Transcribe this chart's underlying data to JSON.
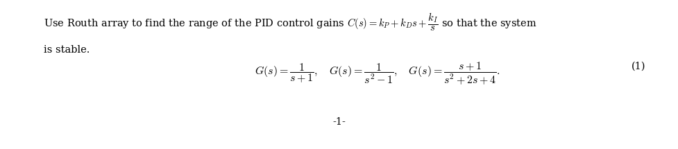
{
  "background_color": "#ffffff",
  "text_color": "#000000",
  "line1": "Use Routh array to find the range of the PID control gains $C(s) = k_P+k_Ds+\\dfrac{k_I}{s}$ so that the system",
  "line2": "is stable.",
  "equation": "$G(s) = \\dfrac{1}{s+1},\\quad G(s) = \\dfrac{1}{s^2-1},\\quad G(s) = \\dfrac{s+1}{s^2+2s+4}.$",
  "eq_number": "(1)",
  "page_number": "-1-",
  "body_fontsize": 10.5,
  "eq_fontsize": 11.5,
  "eq_num_fontsize": 10.5,
  "page_num_fontsize": 10.5,
  "fig_width": 9.78,
  "fig_height": 2.15,
  "dpi": 100
}
